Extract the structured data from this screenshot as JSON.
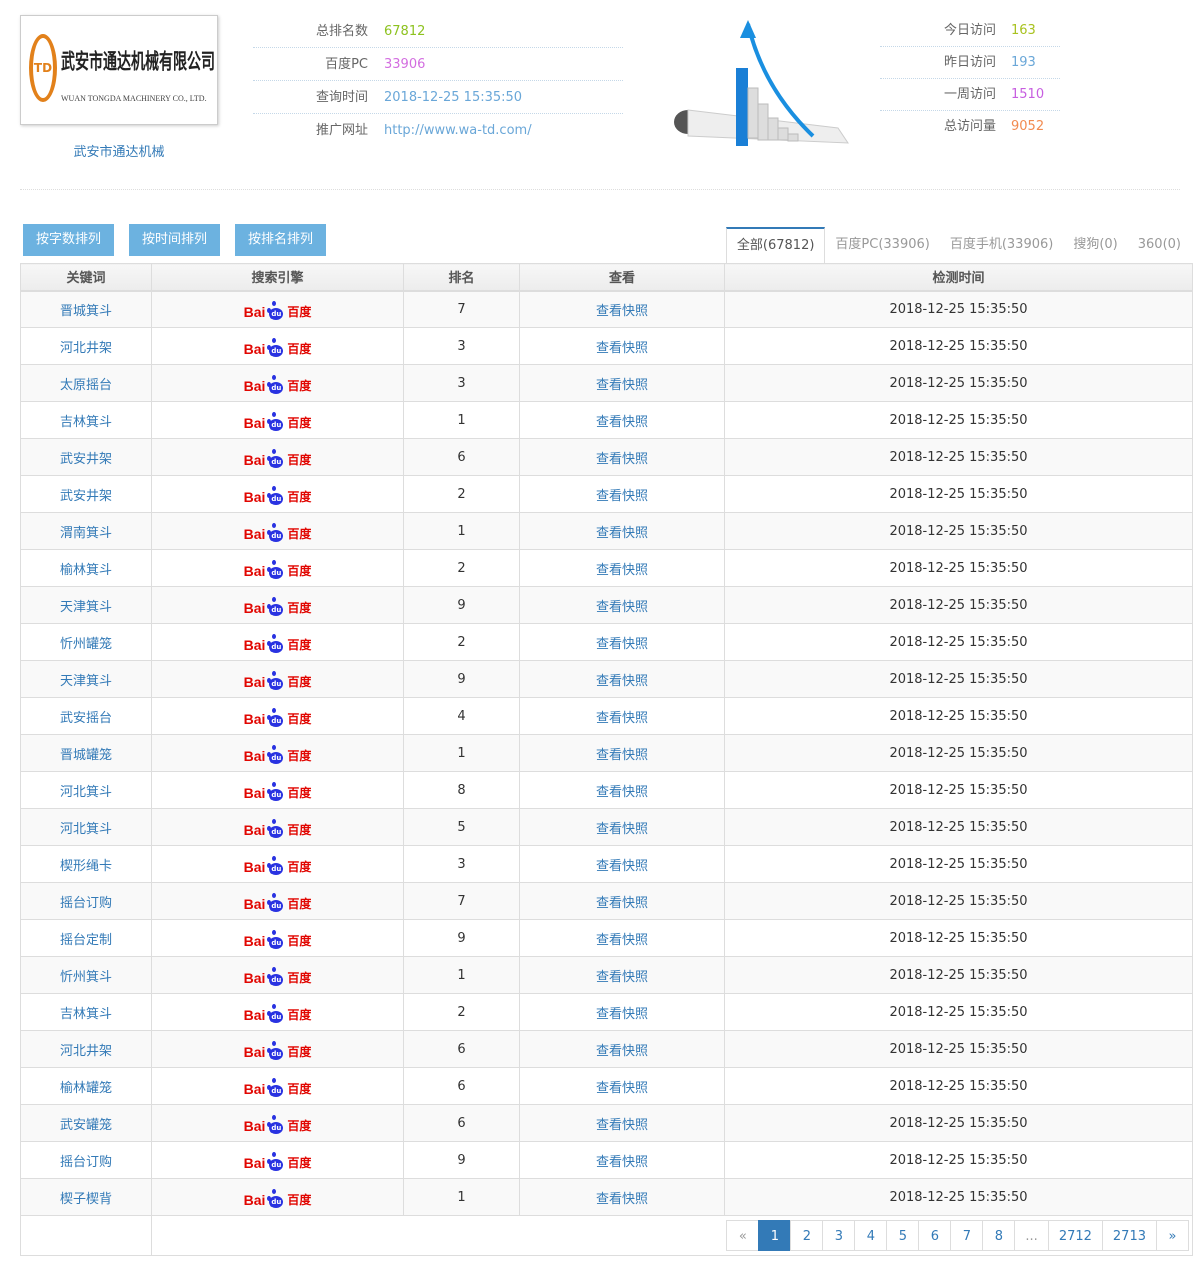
{
  "company": {
    "logo_cn": "武安市通达机械有限公司",
    "logo_en": "WUAN TONGDA MACHINERY CO., LTD.",
    "logo_mark": "TD",
    "name": "武安市通达机械"
  },
  "info": [
    {
      "label": "总排名数",
      "value": "67812",
      "color": "#8dc21f"
    },
    {
      "label": "百度PC",
      "value": "33906",
      "color": "#d36ee0"
    },
    {
      "label": "查询时间",
      "value": "2018-12-25 15:35:50",
      "color": "#6aa7d8"
    },
    {
      "label": "推广网址",
      "value": "http://www.wa-td.com/",
      "color": "#6aa7d8"
    }
  ],
  "visits": [
    {
      "label": "今日访问",
      "value": "163",
      "color": "#a8c21f"
    },
    {
      "label": "昨日访问",
      "value": "193",
      "color": "#6aa7d8"
    },
    {
      "label": "一周访问",
      "value": "1510",
      "color": "#c75ee0"
    },
    {
      "label": "总访问量",
      "value": "9052",
      "color": "#f28b50"
    }
  ],
  "sort_buttons": [
    "按字数排列",
    "按时间排列",
    "按排名排列"
  ],
  "tabs": [
    "全部(67812)",
    "百度PC(33906)",
    "百度手机(33906)",
    "搜狗(0)",
    "360(0)"
  ],
  "table": {
    "headers": [
      "关键词",
      "搜索引擎",
      "排名",
      "查看",
      "检测时间"
    ],
    "engine_logo": {
      "left": "Bai",
      "paw": "du",
      "right": "百度"
    },
    "link_label": "查看快照",
    "time": "2018-12-25 15:35:50",
    "rows": [
      {
        "keyword": "晋城箕斗",
        "rank": "7"
      },
      {
        "keyword": "河北井架",
        "rank": "3"
      },
      {
        "keyword": "太原摇台",
        "rank": "3"
      },
      {
        "keyword": "吉林箕斗",
        "rank": "1"
      },
      {
        "keyword": "武安井架",
        "rank": "6"
      },
      {
        "keyword": "武安井架",
        "rank": "2"
      },
      {
        "keyword": "渭南箕斗",
        "rank": "1"
      },
      {
        "keyword": "榆林箕斗",
        "rank": "2"
      },
      {
        "keyword": "天津箕斗",
        "rank": "9"
      },
      {
        "keyword": "忻州罐笼",
        "rank": "2"
      },
      {
        "keyword": "天津箕斗",
        "rank": "9"
      },
      {
        "keyword": "武安摇台",
        "rank": "4"
      },
      {
        "keyword": "晋城罐笼",
        "rank": "1"
      },
      {
        "keyword": "河北箕斗",
        "rank": "8"
      },
      {
        "keyword": "河北箕斗",
        "rank": "5"
      },
      {
        "keyword": "楔形绳卡",
        "rank": "3"
      },
      {
        "keyword": "摇台订购",
        "rank": "7"
      },
      {
        "keyword": "摇台定制",
        "rank": "9"
      },
      {
        "keyword": "忻州箕斗",
        "rank": "1"
      },
      {
        "keyword": "吉林箕斗",
        "rank": "2"
      },
      {
        "keyword": "河北井架",
        "rank": "6"
      },
      {
        "keyword": "榆林罐笼",
        "rank": "6"
      },
      {
        "keyword": "武安罐笼",
        "rank": "6"
      },
      {
        "keyword": "摇台订购",
        "rank": "9"
      },
      {
        "keyword": "楔子楔背",
        "rank": "1"
      }
    ]
  },
  "pagination": {
    "prev": "«",
    "pages": [
      "1",
      "2",
      "3",
      "4",
      "5",
      "6",
      "7",
      "8",
      "...",
      "2712",
      "2713"
    ],
    "current": "1",
    "next": "»"
  }
}
